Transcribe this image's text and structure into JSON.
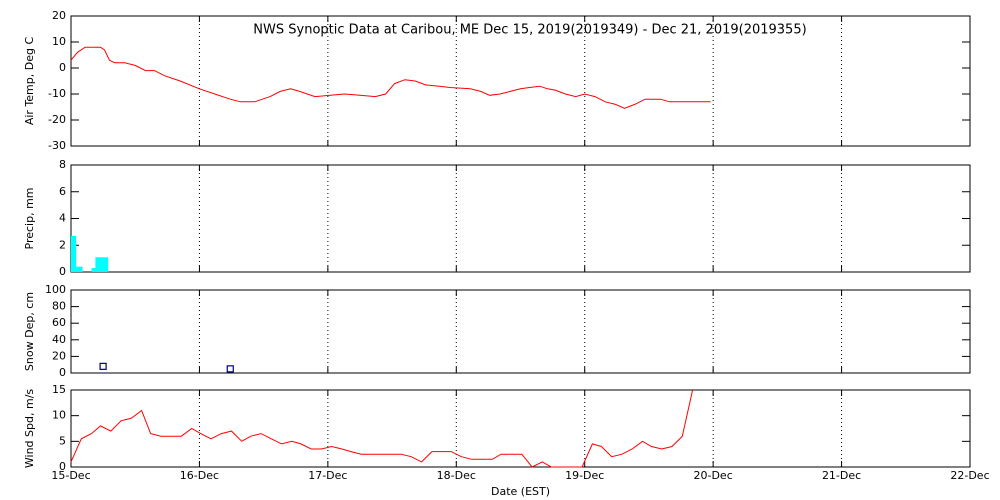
{
  "chart_data": [
    {
      "type": "line",
      "title": "NWS Synoptic Data at Caribou, ME   Dec 15, 2019(2019349) - Dec 21, 2019(2019355)",
      "ylabel": "Air Temp, Deg C",
      "x": [
        0,
        0.05,
        0.11,
        0.23,
        0.26,
        0.3,
        0.34,
        0.42,
        0.5,
        0.58,
        0.65,
        0.73,
        0.85,
        1.0,
        1.12,
        1.24,
        1.32,
        1.43,
        1.55,
        1.63,
        1.71,
        1.78,
        1.9,
        2.02,
        2.13,
        2.25,
        2.37,
        2.45,
        2.52,
        2.6,
        2.68,
        2.76,
        2.87,
        2.95,
        3.11,
        3.19,
        3.26,
        3.34,
        3.42,
        3.5,
        3.57,
        3.65,
        3.71,
        3.77,
        3.85,
        3.93,
        4.0,
        4.08,
        4.16,
        4.24,
        4.31,
        4.39,
        4.47,
        4.59,
        4.66,
        4.78,
        4.98
      ],
      "values": [
        3,
        6,
        8,
        8,
        7,
        3,
        2,
        2,
        1,
        -1,
        -1,
        -3,
        -5,
        -8,
        -10,
        -12,
        -13,
        -13,
        -11,
        -9,
        -8,
        -9,
        -11,
        -10.5,
        -10,
        -10.5,
        -11,
        -10,
        -6,
        -4.5,
        -5,
        -6.5,
        -7,
        -7.5,
        -8,
        -9,
        -10.5,
        -10,
        -9,
        -8,
        -7.5,
        -7,
        -8,
        -8.5,
        -10,
        -11,
        -10,
        -11,
        -13,
        -14,
        -15.5,
        -14,
        -12,
        -12,
        -13,
        -13,
        -13
      ],
      "color": "#ff0000",
      "ylim": [
        -30,
        20
      ],
      "yticks": [
        -30,
        -20,
        -10,
        0,
        10,
        20
      ]
    },
    {
      "type": "histogram",
      "ylabel": "Precip, mm",
      "bins": [
        0,
        0.04,
        0.09,
        0.16,
        0.19,
        0.29
      ],
      "values": [
        2.7,
        0.4,
        0,
        0.3,
        1.1
      ],
      "color": "#00ffff",
      "ylim": [
        0,
        8
      ],
      "yticks": [
        0,
        2,
        4,
        6,
        8
      ]
    },
    {
      "type": "scatter",
      "ylabel": "Snow Dep, cm",
      "x": [
        0.25,
        1.24
      ],
      "values": [
        8,
        5
      ],
      "color": "#000080",
      "ylim": [
        0,
        100
      ],
      "yticks": [
        0,
        20,
        40,
        60,
        80,
        100
      ]
    },
    {
      "type": "line",
      "ylabel": "Wind Spd, m/s",
      "xlabel": "Date (EST)",
      "x": [
        0,
        0.08,
        0.16,
        0.23,
        0.31,
        0.39,
        0.47,
        0.55,
        0.62,
        0.7,
        0.78,
        0.86,
        0.94,
        1.01,
        1.09,
        1.17,
        1.25,
        1.33,
        1.4,
        1.48,
        1.56,
        1.64,
        1.72,
        1.79,
        1.87,
        1.95,
        2.03,
        2.11,
        2.18,
        2.26,
        2.34,
        2.42,
        2.5,
        2.57,
        2.65,
        2.73,
        2.81,
        2.89,
        2.96,
        3.04,
        3.12,
        3.2,
        3.28,
        3.35,
        3.43,
        3.51,
        3.59,
        3.67,
        3.74,
        3.82,
        3.9,
        3.98,
        4.06,
        4.13,
        4.21,
        4.29,
        4.37,
        4.45,
        4.52,
        4.6,
        4.68,
        4.76,
        4.84
      ],
      "values": [
        1,
        5.5,
        6.5,
        8,
        7,
        9,
        9.5,
        11,
        6.5,
        6,
        6,
        6,
        7.5,
        6.5,
        5.5,
        6.5,
        7,
        5,
        6,
        6.5,
        5.5,
        4.5,
        5,
        4.5,
        3.5,
        3.5,
        4,
        3.5,
        3,
        2.5,
        2.5,
        2.5,
        2.5,
        2.5,
        2,
        1,
        3,
        3,
        3,
        2,
        1.5,
        1.5,
        1.5,
        2.5,
        2.5,
        2.5,
        0,
        1,
        0,
        0,
        0,
        0,
        4.5,
        4,
        2,
        2.5,
        3.5,
        5,
        4,
        3.5,
        4,
        6,
        15
      ],
      "color": "#ff0000",
      "ylim": [
        0,
        15
      ],
      "yticks": [
        0,
        5,
        10,
        15
      ],
      "xlim": [
        0,
        7
      ],
      "xticks": [
        {
          "value": 0,
          "label": "15-Dec"
        },
        {
          "value": 1,
          "label": "16-Dec"
        },
        {
          "value": 2,
          "label": "17-Dec"
        },
        {
          "value": 3,
          "label": "18-Dec"
        },
        {
          "value": 4,
          "label": "19-Dec"
        },
        {
          "value": 5,
          "label": "20-Dec"
        },
        {
          "value": 6,
          "label": "21-Dec"
        },
        {
          "value": 7,
          "label": "22-Dec"
        }
      ]
    }
  ]
}
